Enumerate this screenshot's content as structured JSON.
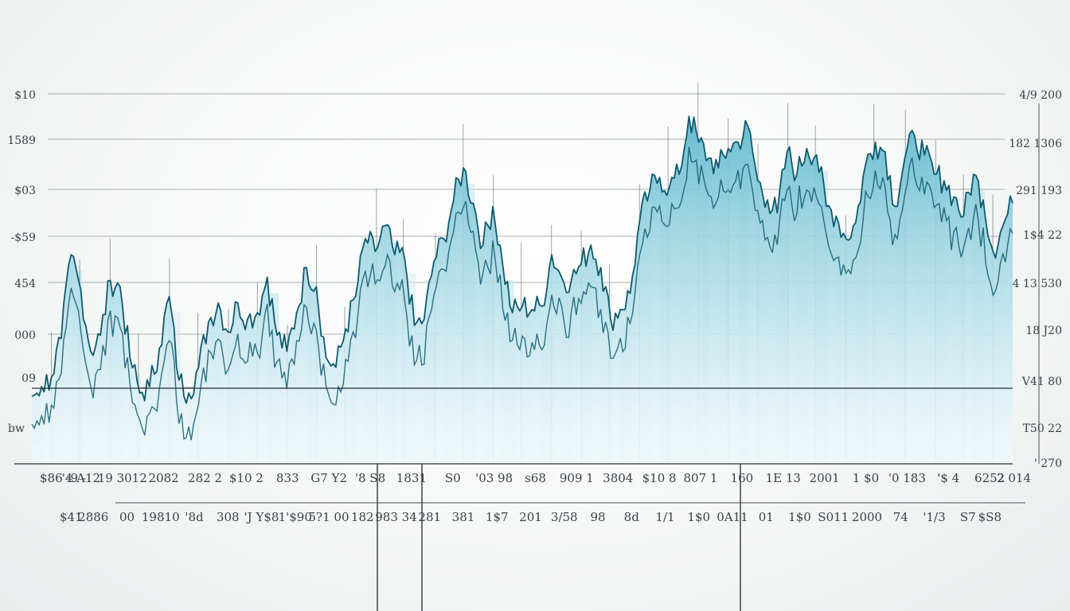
{
  "chart_data": {
    "type": "area",
    "title": "",
    "xlabel": "",
    "ylabel": "",
    "grid": true,
    "legend": "none",
    "colors": {
      "line": "#0e5a6e",
      "fill_top": "#5fb8cd",
      "fill_bottom": "#d4edf4",
      "grid": "#8e979b",
      "spike": "#555b5e",
      "text": "#3a4246"
    },
    "y_left_ticks": [
      "$10",
      "1589",
      "$03",
      "-$59",
      "454",
      "000",
      "09",
      "bw"
    ],
    "y_right_ticks": [
      "4/9 200",
      "182 1306",
      "291 193",
      "1$4 22",
      "4 13 530",
      "18 J20",
      "V41 80",
      "T50 22",
      "' 270"
    ],
    "x_ticks_row1": [
      "$86 :9 -",
      "'4 A12",
      "19 3012",
      "2082",
      "282 2",
      "$10 2",
      "833",
      "G7 Y2",
      "'8 S8",
      "1831",
      "S0",
      "'03 98",
      "s68",
      "909 1",
      "3804",
      "$10 8",
      "807 1",
      "160",
      "1E 13",
      "2001",
      "1 $0",
      "'0 183",
      "'$ 4",
      "6252",
      "2 014"
    ],
    "x_ticks_row2": [
      "$41",
      "2886",
      "00",
      "19810",
      "'8d",
      "308",
      "'J Y$8",
      "1'$90",
      "5?1 00",
      "182",
      "983 34",
      "281",
      "381",
      "1$7",
      "201",
      "3/58",
      "98",
      "8d",
      "1/1",
      "1$0",
      "0A11",
      "01",
      "1$0",
      "S011",
      "2000",
      "74",
      "'1/3",
      "S7",
      "$S8"
    ],
    "series": [
      {
        "x": [
          0,
          1,
          2,
          3,
          4,
          5,
          6,
          7,
          8,
          9,
          10,
          11,
          12,
          13,
          14,
          15,
          16,
          17,
          18,
          19,
          20,
          21,
          22,
          23,
          24,
          25,
          26,
          27,
          28,
          29,
          30,
          31,
          32,
          33,
          34,
          35,
          36,
          37,
          38,
          39,
          40,
          41,
          42,
          43,
          44,
          45,
          46,
          47,
          48,
          49,
          50,
          51,
          52,
          53,
          54,
          55,
          56,
          57,
          58,
          59,
          60,
          61,
          62,
          63,
          64,
          65,
          66,
          67,
          68,
          69,
          70,
          71,
          72,
          73,
          74,
          75,
          76,
          77,
          78,
          79,
          80,
          81,
          82,
          83,
          84,
          85,
          86,
          87,
          88,
          89,
          90,
          91,
          92,
          93,
          94,
          95,
          96,
          97,
          98,
          99,
          100
        ],
        "y": [
          21,
          24,
          27,
          39,
          65,
          54,
          35,
          40,
          57,
          55,
          33,
          22,
          24,
          36,
          52,
          26,
          22,
          30,
          44,
          50,
          41,
          50,
          45,
          47,
          58,
          40,
          35,
          47,
          61,
          55,
          33,
          30,
          42,
          52,
          70,
          66,
          74,
          65,
          64,
          43,
          45,
          63,
          70,
          82,
          92,
          81,
          68,
          80,
          62,
          47,
          49,
          48,
          49,
          65,
          58,
          57,
          62,
          68,
          61,
          45,
          48,
          53,
          76,
          85,
          89,
          86,
          90,
          108,
          100,
          95,
          92,
          98,
          100,
          105,
          88,
          82,
          78,
          97,
          90,
          98,
          96,
          80,
          77,
          70,
          75,
          93,
          100,
          97,
          80,
          95,
          102,
          96,
          90,
          88,
          83,
          77,
          90,
          82,
          66,
          74,
          81
        ]
      }
    ]
  }
}
